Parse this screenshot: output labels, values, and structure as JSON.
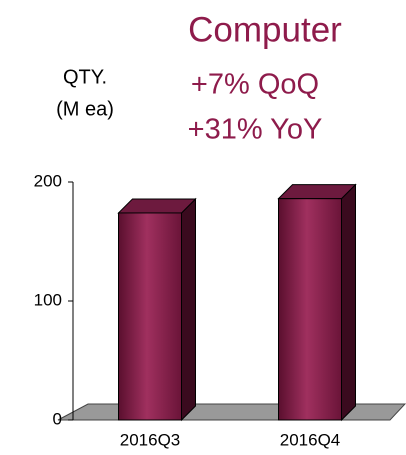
{
  "chart_data": {
    "type": "bar3d",
    "title": "Computer",
    "annotations": [
      "+7% QoQ",
      "+31% YoY"
    ],
    "y_label": [
      "QTY.",
      "(M ea)"
    ],
    "categories": [
      "2016Q3",
      "2016Q4"
    ],
    "values": [
      174,
      186
    ],
    "color": "#8e1b4b",
    "title_color": "#8e1b4b",
    "ylim": [
      0,
      200
    ],
    "yticks": [
      0,
      100,
      200
    ]
  }
}
